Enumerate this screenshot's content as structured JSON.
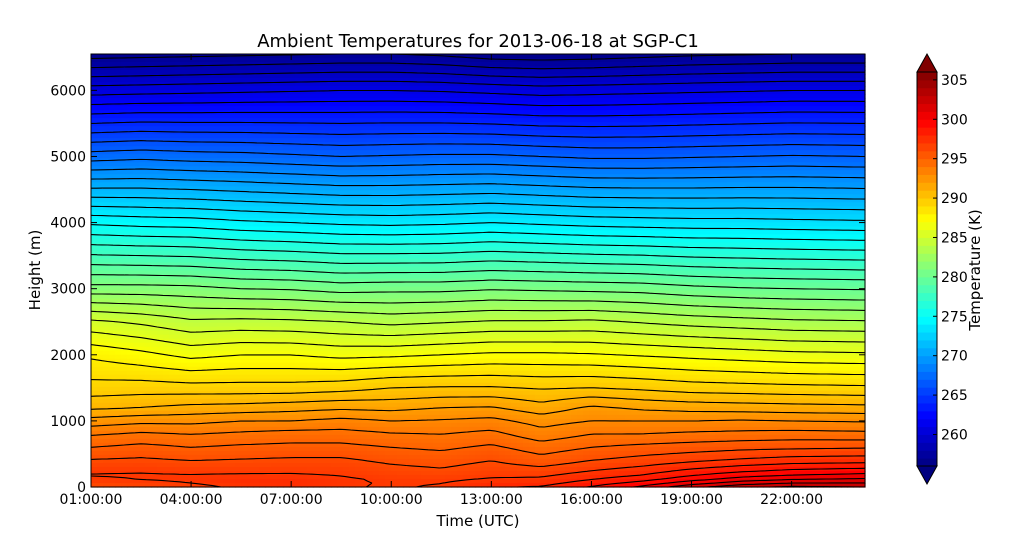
{
  "chart_data": {
    "type": "heatmap",
    "title": "Ambient Temperatures for 2013-06-18 at SGP-C1",
    "xlabel": "Time (UTC)",
    "ylabel": "Height (m)",
    "x_ticks": [
      "01:00:00",
      "04:00:00",
      "07:00:00",
      "10:00:00",
      "13:00:00",
      "16:00:00",
      "19:00:00",
      "22:00:00"
    ],
    "x_tick_hours": [
      1,
      4,
      7,
      10,
      13,
      16,
      19,
      22
    ],
    "xlim_hours": [
      1,
      24.2
    ],
    "y_ticks": [
      0,
      1000,
      2000,
      3000,
      4000,
      5000,
      6000
    ],
    "ylim": [
      0,
      6550
    ],
    "colorbar": {
      "label": "Temperature (K)",
      "ticks": [
        260,
        265,
        270,
        275,
        280,
        285,
        290,
        295,
        300,
        305
      ],
      "range": [
        256,
        306
      ],
      "extend": "both",
      "colormap": "jet"
    },
    "contour_interval_K": 1,
    "profile_hours": [
      1,
      2.5,
      4,
      5.5,
      7,
      8.5,
      10,
      11.5,
      13,
      14.5,
      16,
      17.5,
      19,
      20.5,
      22,
      24.2
    ],
    "profile_heights": [
      0,
      100,
      200,
      400,
      600,
      800,
      1000,
      1200,
      1500,
      2000,
      2500,
      3000,
      4000,
      5000,
      6000,
      6550
    ],
    "temperature_K": [
      [
        296.0,
        296.8,
        297.1,
        296.1,
        295.0,
        293.9,
        292.4,
        290.8,
        289.4,
        287.8,
        285.2,
        281.4,
        274.8,
        267.5,
        260.5,
        256.5
      ],
      [
        296.4,
        297.0,
        297.1,
        296.2,
        295.3,
        294.2,
        292.7,
        291.0,
        289.5,
        287.3,
        284.8,
        281.4,
        274.6,
        267.7,
        260.6,
        256.6
      ],
      [
        296.7,
        297.2,
        297.0,
        296.0,
        295.0,
        294.0,
        292.7,
        291.3,
        289.4,
        286.7,
        284.2,
        281.3,
        274.5,
        267.5,
        260.7,
        256.7
      ],
      [
        297.2,
        297.5,
        297.0,
        296.1,
        295.2,
        294.2,
        293.0,
        291.4,
        289.4,
        287.0,
        284.3,
        281.0,
        274.2,
        267.4,
        260.8,
        256.8
      ],
      [
        297.5,
        297.6,
        297.0,
        296.2,
        295.3,
        294.4,
        293.0,
        291.6,
        289.4,
        287.0,
        284.2,
        280.9,
        274.0,
        267.2,
        260.9,
        256.9
      ],
      [
        297.1,
        297.2,
        296.9,
        296.2,
        295.3,
        294.4,
        293.3,
        291.8,
        289.6,
        286.7,
        284.0,
        280.6,
        273.8,
        267.0,
        261.0,
        257.0
      ],
      [
        296.9,
        296.9,
        296.5,
        295.8,
        295.0,
        294.1,
        293.0,
        291.7,
        290.0,
        286.8,
        283.7,
        280.7,
        273.7,
        267.1,
        261.0,
        257.0
      ],
      [
        297.1,
        296.9,
        296.3,
        295.6,
        294.8,
        294.0,
        293.1,
        292.0,
        290.1,
        287.0,
        283.9,
        280.7,
        273.8,
        267.2,
        260.9,
        256.8
      ],
      [
        297.9,
        297.2,
        296.7,
        296.0,
        295.2,
        294.3,
        293.3,
        292.1,
        290.1,
        287.2,
        284.1,
        280.9,
        274.0,
        267.2,
        260.7,
        256.4
      ],
      [
        298.1,
        297.3,
        296.7,
        295.4,
        294.5,
        293.4,
        292.6,
        291.4,
        289.9,
        287.2,
        284.1,
        280.8,
        273.8,
        267.0,
        260.5,
        256.3
      ],
      [
        299.1,
        298.1,
        297.3,
        296.0,
        295.0,
        294.0,
        293.0,
        292.2,
        290.0,
        287.1,
        284.2,
        280.7,
        273.6,
        266.8,
        260.6,
        256.4
      ],
      [
        300.2,
        298.8,
        297.8,
        296.4,
        295.3,
        294.0,
        293.0,
        291.8,
        289.8,
        286.9,
        283.9,
        280.6,
        273.5,
        266.8,
        260.7,
        256.6
      ],
      [
        301.7,
        299.8,
        298.7,
        296.8,
        295.5,
        294.2,
        293.0,
        291.6,
        289.5,
        286.7,
        283.6,
        280.3,
        273.4,
        266.9,
        260.8,
        256.8
      ],
      [
        302.7,
        300.7,
        299.3,
        297.2,
        295.7,
        294.3,
        293.1,
        291.5,
        289.4,
        286.5,
        283.4,
        280.1,
        273.4,
        267.0,
        260.9,
        256.9
      ],
      [
        303.2,
        301.2,
        299.7,
        297.5,
        295.8,
        294.4,
        293.0,
        291.4,
        289.3,
        286.3,
        283.2,
        280.0,
        273.3,
        267.1,
        261.0,
        257.0
      ],
      [
        303.0,
        301.4,
        300.0,
        297.6,
        295.9,
        294.3,
        292.9,
        291.3,
        289.2,
        286.2,
        283.1,
        279.9,
        273.2,
        267.0,
        261.0,
        257.0
      ]
    ]
  }
}
